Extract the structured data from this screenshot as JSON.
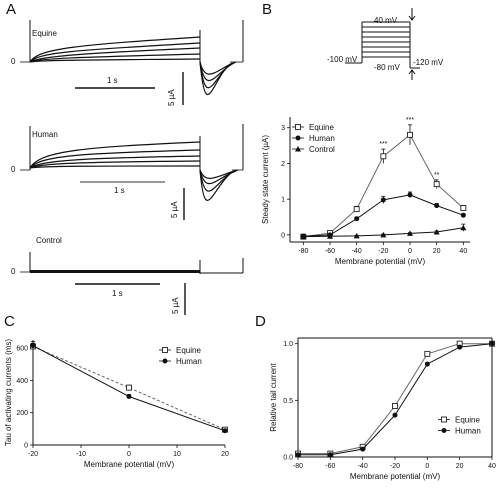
{
  "figure": {
    "panel_letters": [
      "A",
      "B",
      "C",
      "D"
    ],
    "traces": [
      {
        "label": "Equine",
        "zero_label": "0",
        "time_scale": "1 s",
        "current_scale": "5 µA"
      },
      {
        "label": "Human",
        "zero_label": "0",
        "time_scale": "1 s",
        "current_scale": "5 µA"
      },
      {
        "label": "Control",
        "zero_label": "0",
        "time_scale": "1 s",
        "current_scale": "5 µA"
      }
    ],
    "protocol": {
      "top_voltage": "40 mV",
      "holding_voltage": "-100 mV",
      "bottom_step": "-80 mV",
      "tail_voltage": "-120 mV"
    }
  },
  "chart_data": [
    {
      "panel": "B",
      "type": "line",
      "xlabel": "Membrane potential (mV)",
      "ylabel": "Steady state current (µA)",
      "xlim": [
        -90,
        45
      ],
      "ylim": [
        -0.2,
        3.3
      ],
      "xticks": [
        -80,
        -60,
        -40,
        -20,
        0,
        20,
        40
      ],
      "yticks": [
        0,
        1,
        2,
        3
      ],
      "legend_position": "top-left",
      "annotations": [
        {
          "text": "***",
          "x": -20,
          "series": "Equine"
        },
        {
          "text": "***",
          "x": 0,
          "series": "Equine"
        },
        {
          "text": "**",
          "x": 20,
          "series": "Equine"
        }
      ],
      "series": [
        {
          "name": "Equine",
          "marker": "open-square",
          "x": [
            -80,
            -60,
            -40,
            -20,
            0,
            20,
            40
          ],
          "y": [
            -0.05,
            0.05,
            0.72,
            2.2,
            2.8,
            1.42,
            0.75
          ],
          "err": [
            0.02,
            0.03,
            0.08,
            0.2,
            0.28,
            0.12,
            0.07
          ]
        },
        {
          "name": "Human",
          "marker": "filled-circle",
          "x": [
            -80,
            -60,
            -40,
            -20,
            0,
            20,
            40
          ],
          "y": [
            -0.04,
            0.0,
            0.45,
            0.98,
            1.12,
            0.82,
            0.55
          ],
          "err": [
            0.02,
            0.02,
            0.05,
            0.1,
            0.08,
            0.06,
            0.05
          ]
        },
        {
          "name": "Control",
          "marker": "filled-triangle",
          "x": [
            -80,
            -60,
            -40,
            -20,
            0,
            20,
            40
          ],
          "y": [
            -0.05,
            -0.04,
            -0.03,
            0.0,
            0.04,
            0.08,
            0.2
          ],
          "err": [
            0.02,
            0.02,
            0.02,
            0.02,
            0.02,
            0.03,
            0.1
          ]
        }
      ]
    },
    {
      "panel": "C",
      "type": "line",
      "xlabel": "Membrane potential (mV)",
      "ylabel": "Tau of activating currents (ms)",
      "xlim": [
        -20,
        20
      ],
      "ylim": [
        0,
        650
      ],
      "xticks": [
        -20,
        -10,
        0,
        10,
        20
      ],
      "yticks": [
        0,
        200,
        400,
        600
      ],
      "legend_position": "top-right",
      "series": [
        {
          "name": "Equine",
          "marker": "open-square",
          "x": [
            -20,
            0,
            20
          ],
          "y": [
            610,
            355,
            95
          ],
          "err": [
            20,
            15,
            8
          ]
        },
        {
          "name": "Human",
          "marker": "filled-circle",
          "x": [
            -20,
            0,
            20
          ],
          "y": [
            615,
            300,
            88
          ],
          "err": [
            25,
            12,
            10
          ]
        }
      ]
    },
    {
      "panel": "D",
      "type": "line",
      "xlabel": "Membrane potential (mV)",
      "ylabel": "Relative tail current",
      "xlim": [
        -80,
        40
      ],
      "ylim": [
        0,
        1.05
      ],
      "xticks": [
        -80,
        -60,
        -40,
        -20,
        0,
        20,
        40
      ],
      "yticks": [
        0.0,
        0.5,
        1.0
      ],
      "legend_position": "right",
      "series": [
        {
          "name": "Equine",
          "marker": "open-square",
          "x": [
            -80,
            -60,
            -40,
            -20,
            0,
            20,
            40
          ],
          "y": [
            0.03,
            0.03,
            0.09,
            0.45,
            0.91,
            1.0,
            1.0
          ]
        },
        {
          "name": "Human",
          "marker": "filled-circle",
          "x": [
            -80,
            -60,
            -40,
            -20,
            0,
            20,
            40
          ],
          "y": [
            0.02,
            0.02,
            0.07,
            0.37,
            0.82,
            0.97,
            1.0
          ]
        }
      ]
    }
  ]
}
